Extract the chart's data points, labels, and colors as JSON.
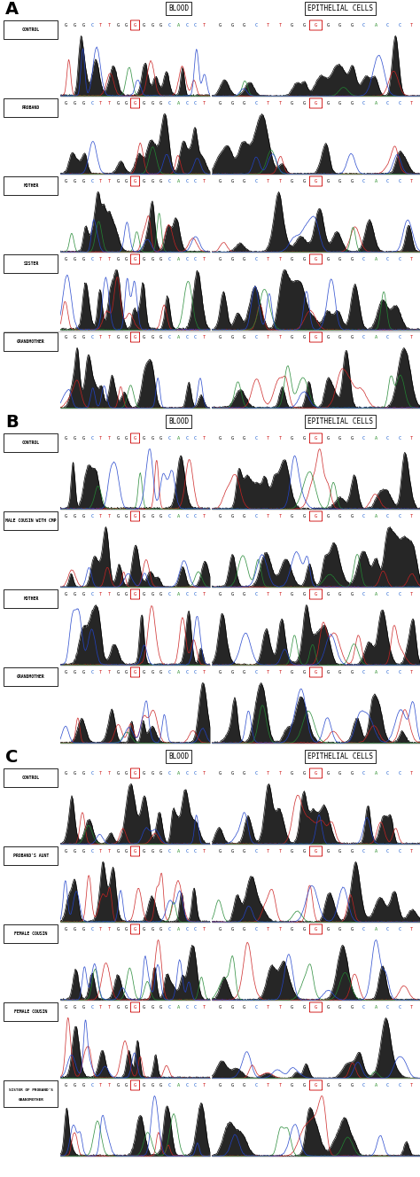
{
  "section_A_rows": [
    "CONTROL",
    "PROBAND",
    "MOTHER",
    "SISTER",
    "GRANDMOTHER"
  ],
  "section_B_rows": [
    "CONTROL",
    "MALE COUSIN WITH CMP",
    "MOTHER",
    "GRANDMOTHER"
  ],
  "section_C_rows": [
    "CONTROL",
    "PROBAND'S AUNT",
    "FEMALE COUSIN",
    "FEMALE COUSIN",
    "SISTER OF PROBAND'S\nGRANDMOTHER"
  ],
  "blood_label": "BLOOD",
  "epithelial_label": "EPITHELIAL CELLS",
  "section_labels": [
    "A",
    "B",
    "C"
  ],
  "seq_bases": [
    "G",
    "G",
    "G",
    "C",
    "T",
    "T",
    "G",
    "G",
    "G",
    "G",
    "G",
    "G",
    "C",
    "A",
    "C",
    "C",
    "T"
  ],
  "seq_colors": [
    "k",
    "k",
    "k",
    "#1155cc",
    "#cc1111",
    "#cc1111",
    "k",
    "k",
    "#cc2222",
    "k",
    "k",
    "k",
    "#1155cc",
    "#228822",
    "#1155cc",
    "#1155cc",
    "#cc1111"
  ],
  "highlight_idx": 8,
  "bg_color": "#ffffff",
  "divider_color": "#888888",
  "sep_line_color": "#aaaaaa",
  "label_box_color": "#000000",
  "header_fontsize": 14,
  "seq_fontsize": 3.8,
  "label_fontsize": 3.5,
  "blood_epithelial_fontsize": 5.5
}
